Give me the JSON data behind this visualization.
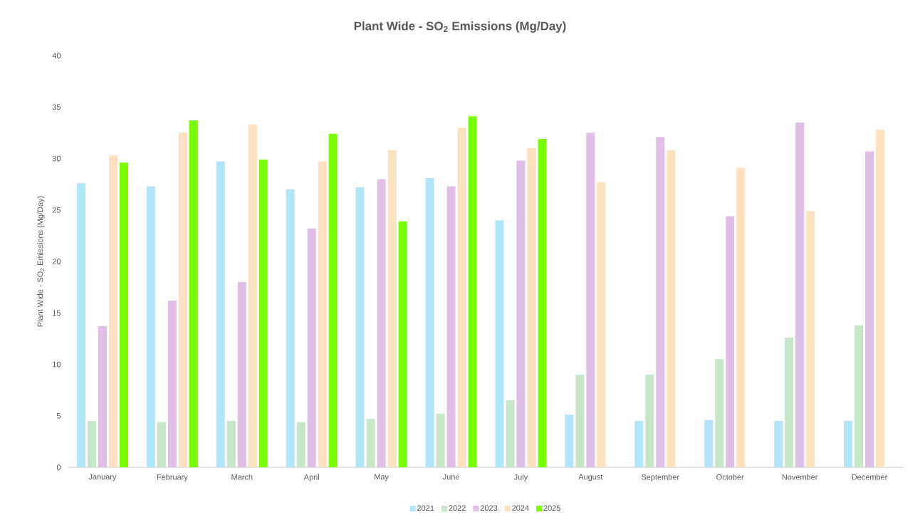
{
  "chart_data": {
    "type": "bar",
    "title": "Plant Wide - SO$_{2}$ Emissions (Mg/Day)",
    "ylabel": "Plant Wide - SO$_{2}$ Emissions (Mg/Day)",
    "categories": [
      "January",
      "February",
      "March",
      "April",
      "May",
      "June",
      "July",
      "August",
      "September",
      "October",
      "November",
      "December"
    ],
    "series": [
      {
        "name": "2021",
        "color": "#b3e5f8",
        "values": [
          27.6,
          27.3,
          29.7,
          27.0,
          27.2,
          28.1,
          24.0,
          5.1,
          4.5,
          4.6,
          4.5,
          4.5
        ]
      },
      {
        "name": "2022",
        "color": "#c7e5c9",
        "values": [
          4.5,
          4.4,
          4.5,
          4.4,
          4.7,
          5.2,
          6.5,
          9.0,
          9.0,
          10.5,
          12.6,
          13.8
        ]
      },
      {
        "name": "2023",
        "color": "#dfbfe6",
        "values": [
          13.7,
          16.2,
          18.0,
          23.2,
          28.0,
          27.3,
          29.8,
          32.5,
          32.1,
          24.4,
          33.5,
          30.7
        ]
      },
      {
        "name": "2024",
        "color": "#fde0c0",
        "values": [
          30.3,
          32.5,
          33.3,
          29.7,
          30.8,
          33.0,
          31.0,
          27.7,
          30.8,
          29.1,
          24.9,
          32.8
        ]
      },
      {
        "name": "2025",
        "color": "#77ff00",
        "values": [
          29.6,
          33.7,
          29.9,
          32.4,
          23.9,
          34.1,
          31.9,
          null,
          null,
          null,
          null,
          null
        ]
      }
    ],
    "ylim": [
      0,
      40
    ],
    "yticks": [
      0,
      5,
      10,
      15,
      20,
      25,
      30,
      35,
      40
    ],
    "grid": false,
    "legend": "bottom"
  }
}
